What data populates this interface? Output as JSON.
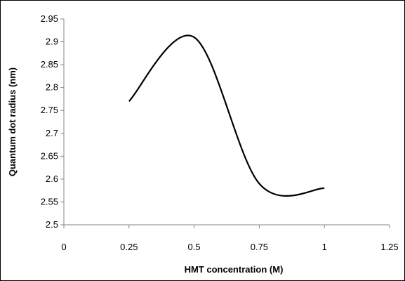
{
  "chart_data": {
    "type": "line",
    "smooth": true,
    "title": "",
    "xlabel": "HMT concentration (M)",
    "ylabel": "Quantum dot radius (nm)",
    "xlim": [
      0,
      1.25
    ],
    "ylim": [
      2.5,
      2.95
    ],
    "x_ticks": [
      "0",
      "0.25",
      "0.5",
      "0.75",
      "1",
      "1.25"
    ],
    "y_ticks": [
      "2.5",
      "2.55",
      "2.6",
      "2.65",
      "2.7",
      "2.75",
      "2.8",
      "2.85",
      "2.9",
      "2.95"
    ],
    "grid": false,
    "legend": "none",
    "series": [
      {
        "color": "#000000",
        "x": [
          0.25,
          0.5,
          0.75,
          1.0
        ],
        "y": [
          2.77,
          2.91,
          2.59,
          2.58
        ]
      }
    ]
  }
}
